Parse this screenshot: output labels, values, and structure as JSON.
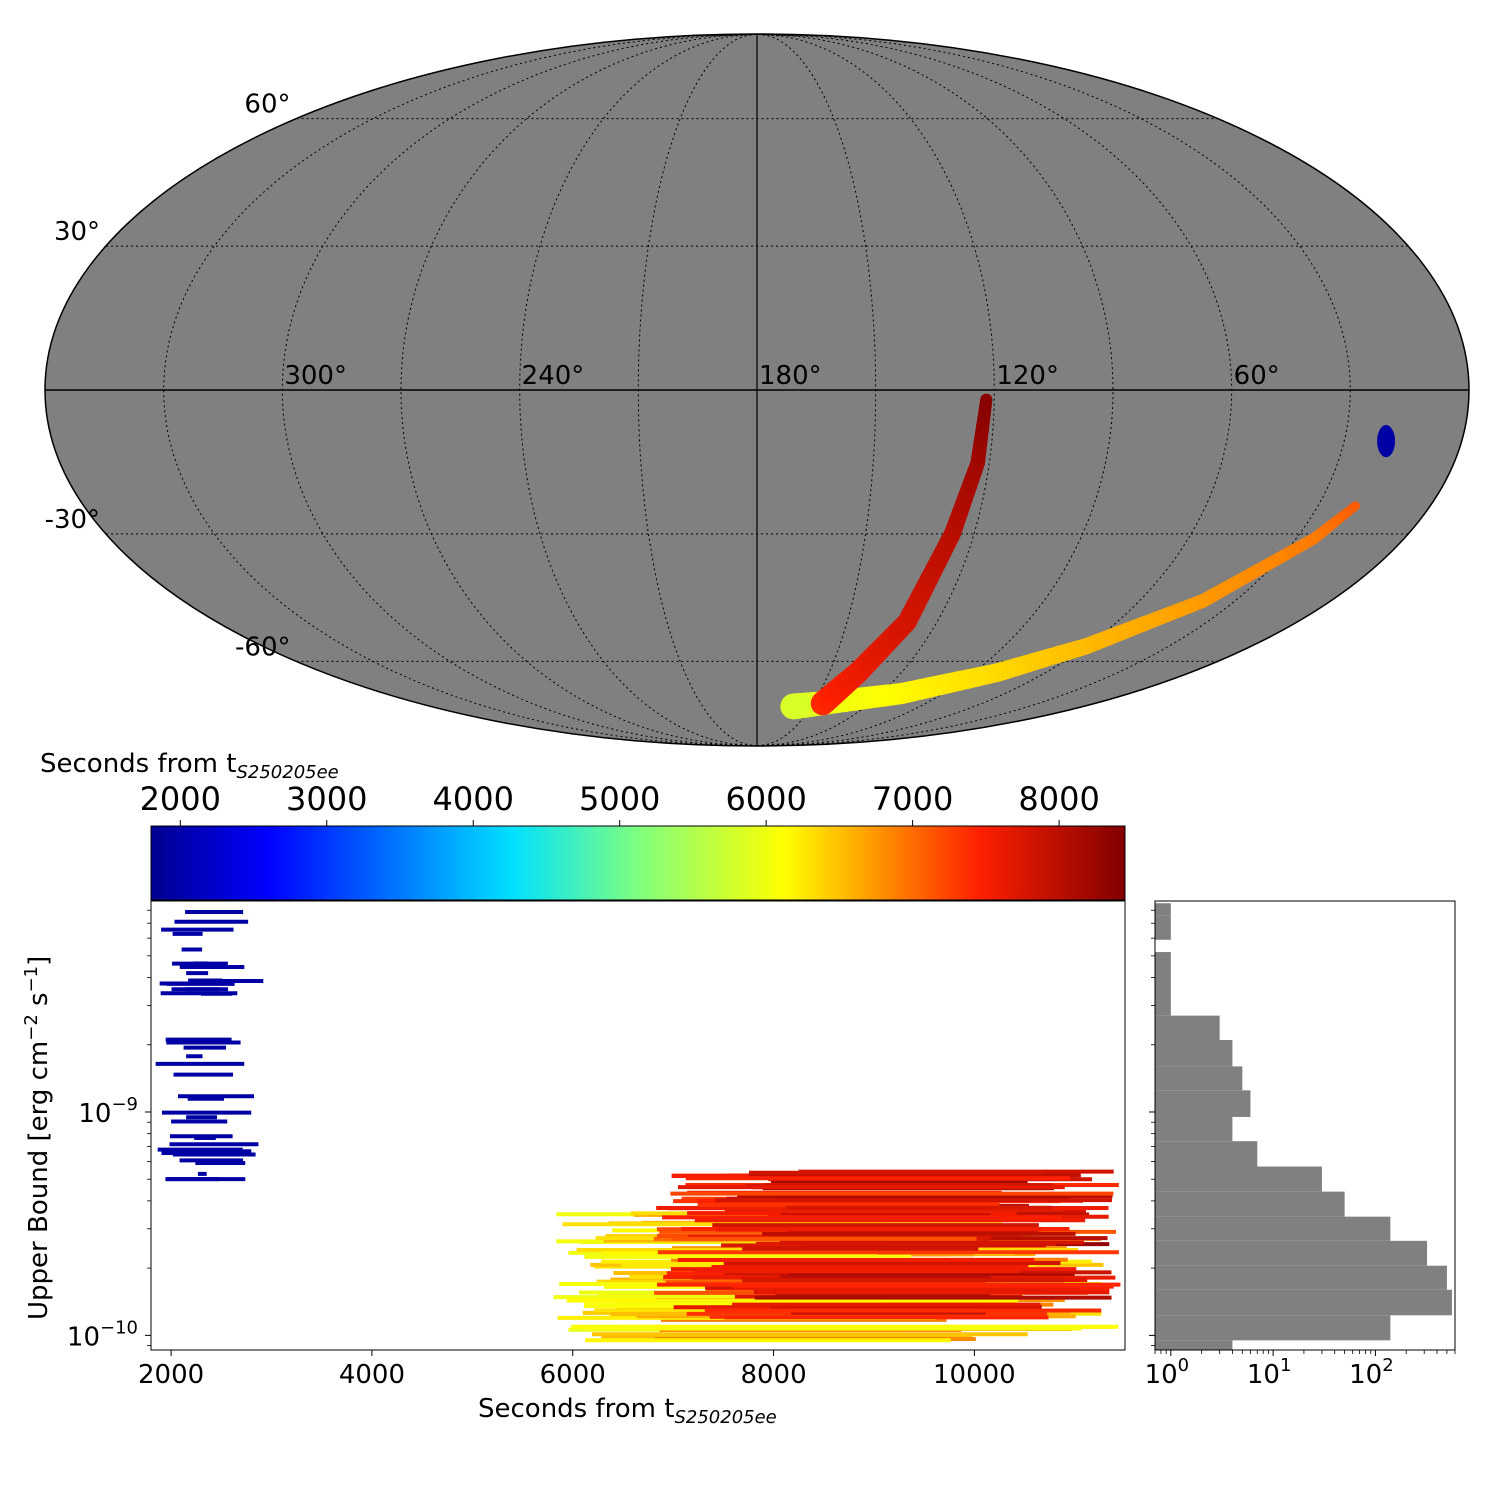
{
  "chart_data": [
    {
      "type": "sky-map",
      "projection": "mollweide",
      "lon_labels": [
        "300°",
        "240°",
        "180°",
        "120°",
        "60°"
      ],
      "lat_labels": [
        "60°",
        "30°",
        "-30°",
        "-60°"
      ],
      "lon_grid_deg": [
        0,
        30,
        60,
        90,
        120,
        150,
        180,
        210,
        240,
        270,
        300,
        330
      ],
      "lat_grid_deg": [
        -60,
        -30,
        0,
        30,
        60
      ],
      "background_color": "#808080",
      "colored_regions": [
        {
          "name": "blue-patch",
          "lon_center": 20,
          "lat": [
            -13,
            -8
          ],
          "time_s": 1950
        },
        {
          "name": "orange-yellow-arc",
          "time_range_s": [
            5800,
            7300
          ],
          "path": [
            [
              20,
              -24
            ],
            [
              25,
              -31
            ],
            [
              40,
              -45
            ],
            [
              60,
              -56
            ],
            [
              80,
              -63
            ],
            [
              110,
              -69
            ],
            [
              145,
              -72
            ],
            [
              160,
              -73
            ]
          ]
        },
        {
          "name": "red-arm",
          "time_range_s": [
            7300,
            8400
          ],
          "path": [
            [
              145,
              -72
            ],
            [
              138,
              -63
            ],
            [
              130,
              -50
            ],
            [
              126,
              -30
            ],
            [
              123,
              -15
            ],
            [
              122,
              -2
            ]
          ]
        }
      ]
    },
    {
      "type": "colorbar",
      "label": "Seconds from t",
      "label_sub": "S250205ee",
      "range": [
        1800,
        8450
      ],
      "ticks": [
        2000,
        3000,
        4000,
        5000,
        6000,
        7000,
        8000
      ],
      "colormap": "jet"
    },
    {
      "type": "horizontal-segments",
      "xlabel": "Seconds from t",
      "xlabel_sub": "S250205ee",
      "ylabel": "Upper Bound [erg cm",
      "ylabel_sup1": "−2",
      "ylabel_mid": " s",
      "ylabel_sup2": "−1",
      "ylabel_end": "]",
      "xlim": [
        1800,
        11500
      ],
      "ylim": [
        8.6e-11,
        8.8e-09
      ],
      "yscale": "log",
      "xticks": [
        2000,
        4000,
        6000,
        8000,
        10000
      ],
      "yticks": [
        "10",
        "10"
      ],
      "ytick_exponents": [
        "−9",
        "−10"
      ],
      "ytick_values": [
        1e-09,
        1e-10
      ],
      "segment_groups": [
        {
          "name": "early-blue",
          "start_s": [
            1800,
            2300
          ],
          "end_s": [
            2300,
            2920
          ],
          "ub": [
            5e-10,
            8e-09
          ],
          "time_s": 1950,
          "count": 40
        },
        {
          "name": "late-yellow-orange",
          "start_s": [
            5800,
            7000
          ],
          "end_s": [
            9000,
            11450
          ],
          "ub": [
            9.3e-11,
            3.6e-10
          ],
          "time_s": [
            5800,
            7000
          ],
          "count": 70
        },
        {
          "name": "late-orange-red",
          "start_s": [
            6800,
            8300
          ],
          "end_s": [
            10000,
            11500
          ],
          "ub": [
            1.2e-10,
            5.5e-10
          ],
          "time_s": [
            7000,
            8400
          ],
          "count": 95
        }
      ]
    },
    {
      "type": "histogram-horizontal",
      "xscale": "log",
      "xlim": [
        0.7,
        600
      ],
      "xticks": [
        "10",
        "10",
        "10"
      ],
      "xtick_exponents": [
        "0",
        "1",
        "2"
      ],
      "xtick_values": [
        1,
        10,
        100
      ],
      "orientation": "horizontal",
      "bar_color": "#808080",
      "bins": [
        {
          "ub": [
            8.6e-09,
            7.6e-09
          ],
          "count": 1
        },
        {
          "ub": [
            7.6e-09,
            5.9e-09
          ],
          "count": 1
        },
        {
          "ub": [
            5.2e-09,
            2.7e-09
          ],
          "count": 1
        },
        {
          "ub": [
            2.7e-09,
            2.1e-09
          ],
          "count": 3
        },
        {
          "ub": [
            2.1e-09,
            1.6e-09
          ],
          "count": 4
        },
        {
          "ub": [
            1.6e-09,
            1.25e-09
          ],
          "count": 5
        },
        {
          "ub": [
            1.25e-09,
            9.5e-10
          ],
          "count": 6
        },
        {
          "ub": [
            9.5e-10,
            7.4e-10
          ],
          "count": 4
        },
        {
          "ub": [
            7.4e-10,
            5.7e-10
          ],
          "count": 7
        },
        {
          "ub": [
            5.7e-10,
            4.4e-10
          ],
          "count": 30
        },
        {
          "ub": [
            4.4e-10,
            3.4e-10
          ],
          "count": 50
        },
        {
          "ub": [
            3.4e-10,
            2.65e-10
          ],
          "count": 140
        },
        {
          "ub": [
            2.65e-10,
            2.05e-10
          ],
          "count": 320
        },
        {
          "ub": [
            2.05e-10,
            1.6e-10
          ],
          "count": 500
        },
        {
          "ub": [
            1.6e-10,
            1.23e-10
          ],
          "count": 560
        },
        {
          "ub": [
            1.23e-10,
            9.5e-11
          ],
          "count": 140
        },
        {
          "ub": [
            9.5e-11,
            8.6e-11
          ],
          "count": 4
        }
      ]
    }
  ]
}
